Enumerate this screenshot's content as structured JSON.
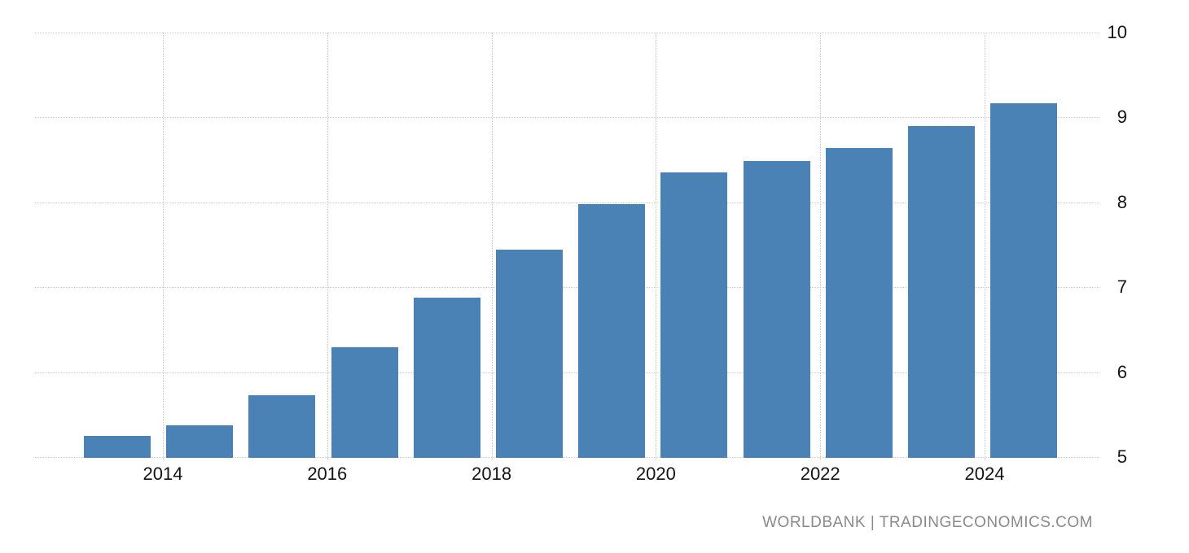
{
  "chart_data": {
    "type": "bar",
    "title": "",
    "xlabel": "",
    "ylabel": "",
    "categories": [
      2013,
      2014,
      2015,
      2016,
      2017,
      2018,
      2019,
      2020,
      2021,
      2022,
      2023,
      2024
    ],
    "values": [
      5.25,
      5.37,
      5.73,
      6.29,
      6.88,
      7.44,
      7.98,
      8.35,
      8.49,
      8.64,
      8.9,
      9.17
    ],
    "ylim": [
      5,
      10
    ],
    "yticks": [
      5,
      6,
      7,
      8,
      9,
      10
    ],
    "ytick_labels": [
      "5",
      "6",
      "7",
      "8",
      "9",
      "10"
    ],
    "xtick_years": [
      2014,
      2016,
      2018,
      2020,
      2022,
      2024
    ],
    "xtick_labels": [
      "2014",
      "2016",
      "2018",
      "2020",
      "2022",
      "2024"
    ],
    "grid": "dotted",
    "legend": "none",
    "yaxis_side": "right",
    "bar_color": "#4a82b5",
    "gridline_color": "#cccccc",
    "axis_label_color": "#141414",
    "background_color": "#ffffff",
    "attribution": "WORLDBANK | TRADINGECONOMICS.COM",
    "attribution_color": "#8a8a8a"
  }
}
